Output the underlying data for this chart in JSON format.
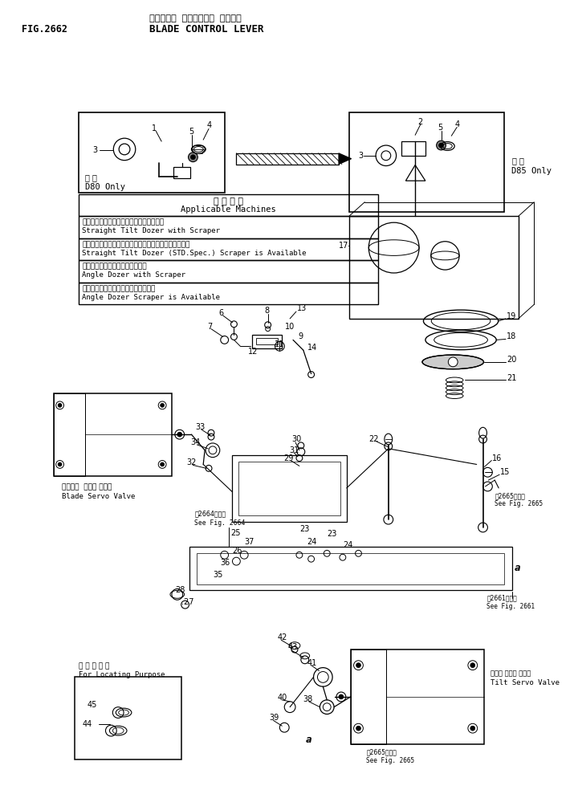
{
  "title_line1": "ブレート゛ エントロール レハーー",
  "title_line2": "BLADE CONTROL LEVER",
  "fig_number": "FIG.2662",
  "bg_color": "#ffffff",
  "line_color": "#000000",
  "text_color": "#000000",
  "applicable_machines_jp": "適 用 機 種",
  "applicable_machines_en": "Applicable Machines",
  "machines": [
    [
      "ストレートチルトドーザスクレーパ証備車",
      "Straight Tilt Dozer with Scraper"
    ],
    [
      "ストレートチルトドーザ標準仕様スクレーパ証備可能車",
      "Straight Tilt Dozer (STD.Spec.) Scraper is Available"
    ],
    [
      "アングルドーザスクレーパ証備車",
      "Angle Dozer with Scraper"
    ],
    [
      "アングルドーザスクレーパ証備可能車",
      "Angle Dozer Scraper is Available"
    ]
  ],
  "d80_only_jp": "専 用",
  "d80_only_en": "D80 Only",
  "d85_only_jp": "専 用",
  "d85_only_en": "D85 Only",
  "blade_servo_valve_jp": "ブレート  マーボ バルブ",
  "blade_servo_valve_en": "Blade Servo Valve",
  "tilt_servo_valve_jp": "チルト マーボ バルブ",
  "tilt_servo_valve_en": "Tilt Servo Valve",
  "for_locating_jp": "位 置 決 め 用",
  "for_locating_en": "For Locating Purpose",
  "see_fig_2664_jp": "第2664図参照",
  "see_fig_2664_en": "See Fig. 2664",
  "see_fig_2665_jp1": "第2665図参照",
  "see_fig_2665_en1": "See Fig. 2665",
  "see_fig_2665_jp2": "第2665図参照",
  "see_fig_2665_en2": "See Fig. 2665",
  "see_fig_2661_jp": "第2661図参照",
  "see_fig_2661_en": "See Fig. 2661"
}
